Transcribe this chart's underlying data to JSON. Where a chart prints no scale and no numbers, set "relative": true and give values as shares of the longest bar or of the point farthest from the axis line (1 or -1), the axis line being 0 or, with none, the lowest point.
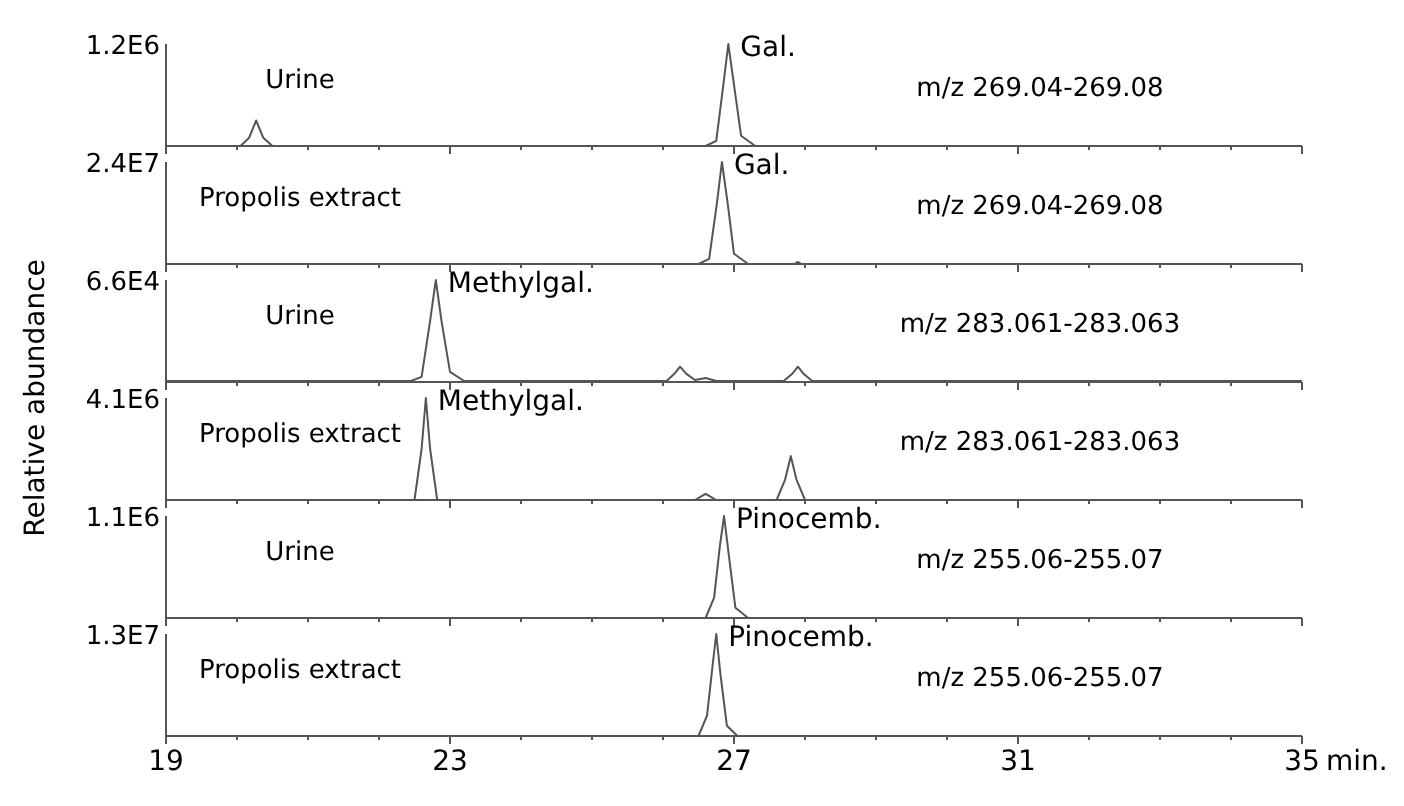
{
  "chart_data": [
    {
      "type": "line",
      "relative": true,
      "color": "#555555",
      "xlim": [
        19,
        35
      ],
      "xticks": [
        19,
        {
          "value": 20,
          "label": null
        },
        {
          "value": 21,
          "label": null
        },
        {
          "value": 22,
          "label": null
        },
        23,
        {
          "value": 24,
          "label": null
        },
        {
          "value": 25,
          "label": null
        },
        {
          "value": 26,
          "label": null
        },
        27,
        {
          "value": 28,
          "label": null
        },
        {
          "value": 29,
          "label": null
        },
        {
          "value": 30,
          "label": null
        },
        31,
        {
          "value": 32,
          "label": null
        },
        {
          "value": 33,
          "label": null
        },
        {
          "value": 34,
          "label": null
        },
        35
      ],
      "tick_labels": false,
      "x": [
        19,
        20.05,
        20.17,
        20.27,
        20.37,
        20.5,
        26.6,
        26.75,
        26.85,
        26.92,
        27.0,
        27.1,
        27.3,
        35
      ],
      "values": [
        0,
        0,
        0.08,
        0.25,
        0.08,
        0,
        0,
        0.05,
        0.6,
        1,
        0.6,
        0.1,
        0,
        0
      ],
      "annotations": [
        "1.2E6",
        "Urine",
        "m/z 269.04-269.08",
        {
          "text": "Gal.",
          "x": 26.92,
          "y": 1
        }
      ]
    },
    {
      "type": "line",
      "relative": true,
      "color": "#555555",
      "xlim": [
        19,
        35
      ],
      "xticks": [
        19,
        {
          "value": 20,
          "label": null
        },
        {
          "value": 21,
          "label": null
        },
        {
          "value": 22,
          "label": null
        },
        23,
        {
          "value": 24,
          "label": null
        },
        {
          "value": 25,
          "label": null
        },
        {
          "value": 26,
          "label": null
        },
        27,
        {
          "value": 28,
          "label": null
        },
        {
          "value": 29,
          "label": null
        },
        {
          "value": 30,
          "label": null
        },
        31,
        {
          "value": 32,
          "label": null
        },
        {
          "value": 33,
          "label": null
        },
        {
          "value": 34,
          "label": null
        },
        35
      ],
      "tick_labels": false,
      "x": [
        19,
        26.5,
        26.65,
        26.76,
        26.83,
        26.91,
        27.0,
        27.2,
        27.85,
        27.9,
        27.95,
        35
      ],
      "values": [
        0,
        0,
        0.05,
        0.6,
        1,
        0.6,
        0.1,
        0,
        0,
        0.02,
        0,
        0
      ],
      "annotations": [
        "2.4E7",
        "Propolis extract",
        "m/z 269.04-269.08",
        {
          "text": "Gal.",
          "x": 26.83,
          "y": 1
        }
      ]
    },
    {
      "type": "line",
      "relative": true,
      "color": "#555555",
      "xlim": [
        19,
        35
      ],
      "xticks": [
        19,
        {
          "value": 20,
          "label": null
        },
        {
          "value": 21,
          "label": null
        },
        {
          "value": 22,
          "label": null
        },
        23,
        {
          "value": 24,
          "label": null
        },
        {
          "value": 25,
          "label": null
        },
        {
          "value": 26,
          "label": null
        },
        27,
        {
          "value": 28,
          "label": null
        },
        {
          "value": 29,
          "label": null
        },
        {
          "value": 30,
          "label": null
        },
        31,
        {
          "value": 32,
          "label": null
        },
        {
          "value": 33,
          "label": null
        },
        {
          "value": 34,
          "label": null
        },
        35
      ],
      "tick_labels": false,
      "ylabel": "Relative abundance",
      "x": [
        19,
        22.45,
        22.6,
        22.72,
        22.8,
        22.88,
        23.0,
        23.2,
        26.05,
        26.16,
        26.24,
        26.33,
        26.45,
        26.6,
        26.75,
        27.7,
        27.82,
        27.9,
        27.98,
        28.1,
        35
      ],
      "values": [
        0.01,
        0.01,
        0.05,
        0.6,
        1,
        0.6,
        0.1,
        0.01,
        0.01,
        0.08,
        0.15,
        0.08,
        0.02,
        0.04,
        0.01,
        0.01,
        0.08,
        0.15,
        0.08,
        0.01,
        0.01
      ],
      "annotations": [
        "6.6E4",
        "Urine",
        "m/z 283.061-283.063",
        {
          "text": "Methylgal.",
          "x": 22.8,
          "y": 1
        }
      ]
    },
    {
      "type": "line",
      "relative": true,
      "color": "#555555",
      "xlim": [
        19,
        35
      ],
      "xticks": [
        19,
        {
          "value": 20,
          "label": null
        },
        {
          "value": 21,
          "label": null
        },
        {
          "value": 22,
          "label": null
        },
        23,
        {
          "value": 24,
          "label": null
        },
        {
          "value": 25,
          "label": null
        },
        {
          "value": 26,
          "label": null
        },
        27,
        {
          "value": 28,
          "label": null
        },
        {
          "value": 29,
          "label": null
        },
        {
          "value": 30,
          "label": null
        },
        31,
        {
          "value": 32,
          "label": null
        },
        {
          "value": 33,
          "label": null
        },
        {
          "value": 34,
          "label": null
        },
        35
      ],
      "tick_labels": false,
      "x": [
        19,
        22.5,
        22.6,
        22.66,
        22.72,
        22.82,
        26.45,
        26.55,
        26.6,
        26.65,
        26.75,
        27.6,
        27.72,
        27.8,
        27.88,
        28.0,
        35
      ],
      "values": [
        0,
        0,
        0.5,
        1,
        0.5,
        0,
        0,
        0.04,
        0.06,
        0.04,
        0,
        0,
        0.2,
        0.43,
        0.2,
        0,
        0
      ],
      "annotations": [
        "4.1E6",
        "Propolis extract",
        "m/z 283.061-283.063",
        {
          "text": "Methylgal.",
          "x": 22.66,
          "y": 1
        }
      ]
    },
    {
      "type": "line",
      "relative": true,
      "color": "#555555",
      "xlim": [
        19,
        35
      ],
      "xticks": [
        19,
        {
          "value": 20,
          "label": null
        },
        {
          "value": 21,
          "label": null
        },
        {
          "value": 22,
          "label": null
        },
        23,
        {
          "value": 24,
          "label": null
        },
        {
          "value": 25,
          "label": null
        },
        {
          "value": 26,
          "label": null
        },
        27,
        {
          "value": 28,
          "label": null
        },
        {
          "value": 29,
          "label": null
        },
        {
          "value": 30,
          "label": null
        },
        31,
        {
          "value": 32,
          "label": null
        },
        {
          "value": 33,
          "label": null
        },
        {
          "value": 34,
          "label": null
        },
        35
      ],
      "tick_labels": false,
      "x": [
        19,
        26.6,
        26.72,
        26.8,
        26.86,
        26.93,
        27.02,
        27.2,
        35
      ],
      "values": [
        0,
        0,
        0.2,
        0.7,
        1,
        0.6,
        0.1,
        0,
        0
      ],
      "annotations": [
        "1.1E6",
        "Urine",
        "m/z 255.06-255.07",
        {
          "text": "Pinocemb.",
          "x": 26.86,
          "y": 1
        }
      ]
    },
    {
      "type": "line",
      "relative": true,
      "color": "#555555",
      "xlim": [
        19,
        35
      ],
      "xticks": [
        19,
        {
          "value": 20,
          "label": null
        },
        {
          "value": 21,
          "label": null
        },
        {
          "value": 22,
          "label": null
        },
        23,
        {
          "value": 24,
          "label": null
        },
        {
          "value": 25,
          "label": null
        },
        {
          "value": 26,
          "label": null
        },
        27,
        {
          "value": 28,
          "label": null
        },
        {
          "value": 29,
          "label": null
        },
        {
          "value": 30,
          "label": null
        },
        31,
        {
          "value": 32,
          "label": null
        },
        {
          "value": 33,
          "label": null
        },
        {
          "value": 34,
          "label": null
        },
        35
      ],
      "tick_labels": "x",
      "xlabel": "min.",
      "x": [
        19,
        26.5,
        26.62,
        26.7,
        26.75,
        26.81,
        26.9,
        27.05,
        35
      ],
      "values": [
        0,
        0,
        0.2,
        0.7,
        1,
        0.6,
        0.1,
        0,
        0
      ],
      "annotations": [
        "1.3E7",
        "Propolis extract",
        "m/z 255.06-255.07",
        {
          "text": "Pinocemb.",
          "x": 26.75,
          "y": 1
        }
      ]
    }
  ]
}
